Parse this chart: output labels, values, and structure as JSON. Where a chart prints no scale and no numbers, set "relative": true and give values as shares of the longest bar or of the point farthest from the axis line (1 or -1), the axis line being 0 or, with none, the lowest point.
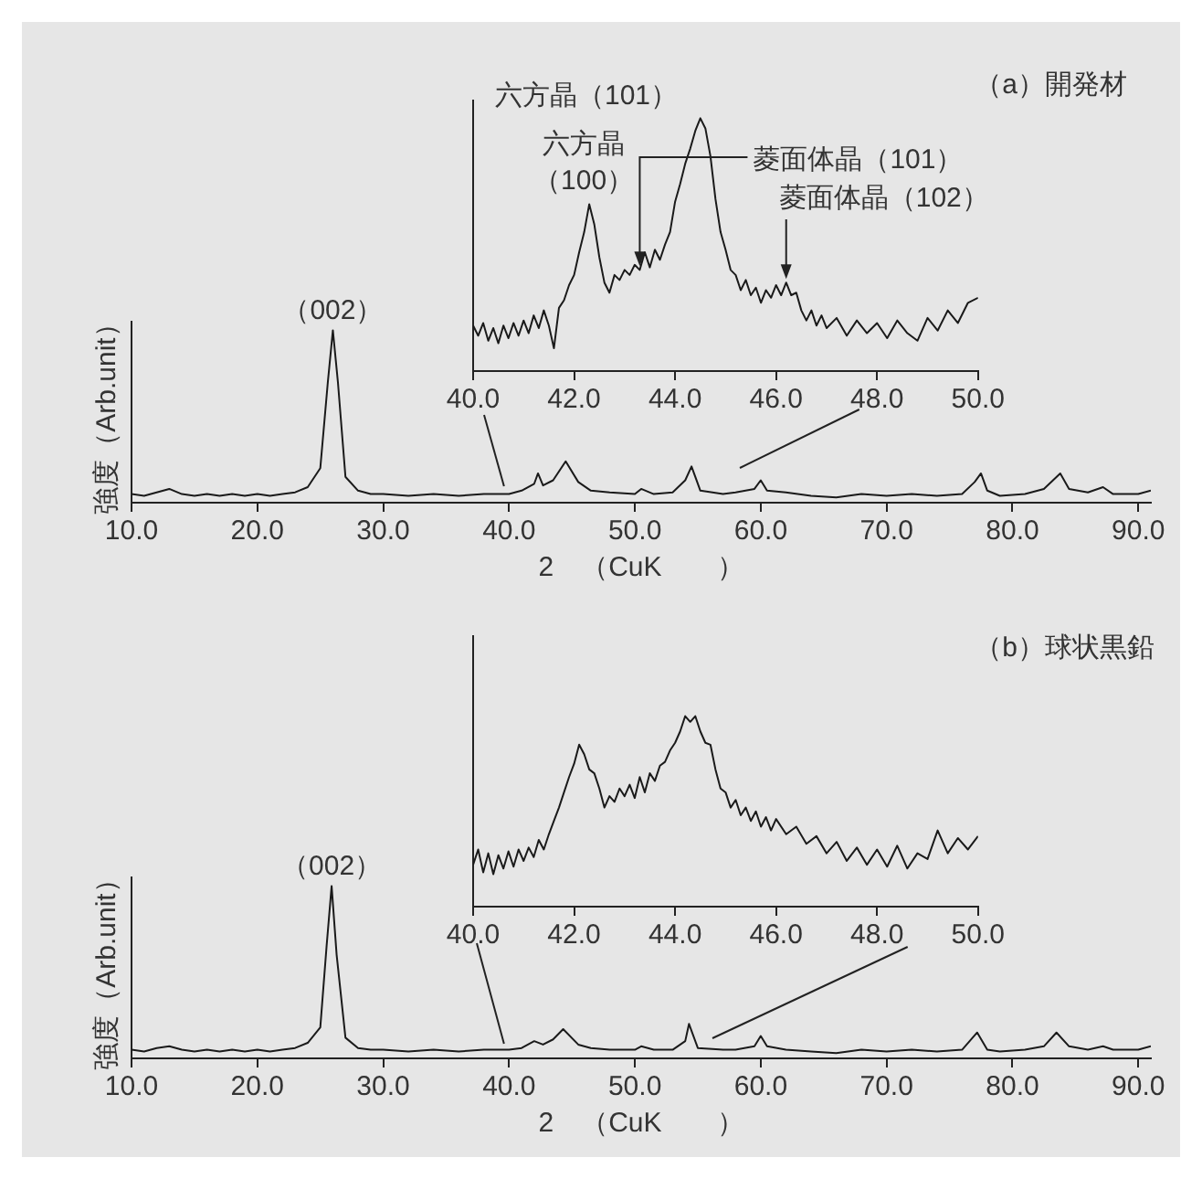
{
  "chart_data": [
    {
      "type": "line",
      "title": "（a）開発材",
      "xlabel": "2　（CuK　　）",
      "ylabel": "強度（Arb.unit）",
      "relative": true,
      "color": "#1a1a1a",
      "xlim": [
        10,
        91
      ],
      "xticks": [
        {
          "value": 10,
          "label": "10.0"
        },
        {
          "value": 20,
          "label": "20.0"
        },
        {
          "value": 30,
          "label": "30.0"
        },
        {
          "value": 40,
          "label": "40.0"
        },
        {
          "value": 50,
          "label": "50.0"
        },
        {
          "value": 60,
          "label": "60.0"
        },
        {
          "value": 70,
          "label": "70.0"
        },
        {
          "value": 80,
          "label": "80.0"
        },
        {
          "value": 90,
          "label": "90.0"
        }
      ],
      "x": [
        10,
        11,
        12,
        13,
        14,
        15,
        16,
        17,
        18,
        19,
        20,
        21,
        22,
        23,
        24,
        25,
        25.6,
        26,
        26.4,
        27,
        28,
        29,
        30,
        32,
        34,
        36,
        38,
        40,
        41,
        42,
        42.3,
        42.7,
        43.5,
        44.5,
        45.5,
        46.5,
        48,
        50,
        50.5,
        51.5,
        53,
        54,
        54.5,
        55.2,
        57,
        58,
        59.5,
        60,
        60.5,
        62,
        64,
        66,
        68,
        70,
        72,
        74,
        76,
        77,
        77.5,
        78,
        79,
        81,
        82.5,
        83.8,
        84.5,
        86,
        87.2,
        88,
        90,
        91
      ],
      "values": [
        0.05,
        0.04,
        0.06,
        0.08,
        0.05,
        0.04,
        0.05,
        0.04,
        0.05,
        0.04,
        0.05,
        0.04,
        0.05,
        0.06,
        0.09,
        0.2,
        0.7,
        1,
        0.7,
        0.15,
        0.07,
        0.05,
        0.05,
        0.04,
        0.05,
        0.04,
        0.05,
        0.05,
        0.07,
        0.11,
        0.17,
        0.1,
        0.13,
        0.24,
        0.12,
        0.07,
        0.06,
        0.05,
        0.08,
        0.05,
        0.06,
        0.13,
        0.21,
        0.07,
        0.05,
        0.06,
        0.08,
        0.13,
        0.07,
        0.06,
        0.04,
        0.03,
        0.05,
        0.04,
        0.05,
        0.04,
        0.05,
        0.12,
        0.17,
        0.07,
        0.04,
        0.05,
        0.08,
        0.17,
        0.08,
        0.06,
        0.09,
        0.05,
        0.05,
        0.07
      ],
      "annotations": [
        {
          "text": "（002）",
          "x": 26,
          "y": 1
        }
      ]
    },
    {
      "type": "line",
      "relative": true,
      "color": "#1a1a1a",
      "xlim": [
        40,
        50
      ],
      "xticks": [
        {
          "value": 40,
          "label": "40.0"
        },
        {
          "value": 42,
          "label": "42.0"
        },
        {
          "value": 44,
          "label": "44.0"
        },
        {
          "value": 46,
          "label": "46.0"
        },
        {
          "value": 48,
          "label": "48.0"
        },
        {
          "value": 50,
          "label": "50.0"
        }
      ],
      "x": [
        40.0,
        40.1,
        40.2,
        40.3,
        40.4,
        40.5,
        40.6,
        40.7,
        40.8,
        40.9,
        41.0,
        41.1,
        41.2,
        41.3,
        41.4,
        41.5,
        41.6,
        41.7,
        41.8,
        41.9,
        42.0,
        42.1,
        42.2,
        42.3,
        42.4,
        42.5,
        42.6,
        42.7,
        42.8,
        42.9,
        43.0,
        43.1,
        43.2,
        43.3,
        43.4,
        43.5,
        43.6,
        43.7,
        43.8,
        43.9,
        44.0,
        44.1,
        44.2,
        44.3,
        44.4,
        44.5,
        44.6,
        44.7,
        44.8,
        44.9,
        45.0,
        45.1,
        45.2,
        45.3,
        45.4,
        45.5,
        45.6,
        45.7,
        45.8,
        45.9,
        46.0,
        46.1,
        46.2,
        46.3,
        46.4,
        46.5,
        46.6,
        46.7,
        46.8,
        46.9,
        47.0,
        47.2,
        47.4,
        47.6,
        47.8,
        48.0,
        48.2,
        48.4,
        48.6,
        48.8,
        49.0,
        49.2,
        49.4,
        49.6,
        49.8,
        50.0
      ],
      "values": [
        0.18,
        0.14,
        0.19,
        0.12,
        0.17,
        0.11,
        0.18,
        0.13,
        0.19,
        0.14,
        0.2,
        0.15,
        0.22,
        0.17,
        0.24,
        0.18,
        0.09,
        0.25,
        0.28,
        0.34,
        0.38,
        0.47,
        0.55,
        0.66,
        0.58,
        0.45,
        0.35,
        0.31,
        0.38,
        0.36,
        0.4,
        0.38,
        0.42,
        0.4,
        0.47,
        0.41,
        0.48,
        0.44,
        0.5,
        0.55,
        0.67,
        0.74,
        0.82,
        0.88,
        0.95,
        1,
        0.96,
        0.85,
        0.68,
        0.55,
        0.48,
        0.4,
        0.38,
        0.32,
        0.36,
        0.3,
        0.33,
        0.27,
        0.32,
        0.29,
        0.34,
        0.3,
        0.35,
        0.3,
        0.31,
        0.24,
        0.2,
        0.24,
        0.18,
        0.22,
        0.17,
        0.21,
        0.14,
        0.2,
        0.15,
        0.19,
        0.13,
        0.2,
        0.15,
        0.12,
        0.21,
        0.16,
        0.24,
        0.19,
        0.27,
        0.29
      ],
      "annotations": [
        "六方晶（101）",
        {
          "text": "六方晶（100）",
          "x": 42.3,
          "y": 0.66
        },
        {
          "text": "菱面体晶（101）",
          "x": 43.3,
          "y": 0.4
        },
        {
          "text": "菱面体晶（102）",
          "x": 46.2,
          "y": 0.35
        }
      ]
    },
    {
      "type": "line",
      "title": "（b）球状黒鉛",
      "xlabel": "2　（CuK　　）",
      "ylabel": "強度（Arb.unit）",
      "relative": true,
      "color": "#1a1a1a",
      "xlim": [
        10,
        91
      ],
      "xticks": [
        {
          "value": 10,
          "label": "10.0"
        },
        {
          "value": 20,
          "label": "20.0"
        },
        {
          "value": 30,
          "label": "30.0"
        },
        {
          "value": 40,
          "label": "40.0"
        },
        {
          "value": 50,
          "label": "50.0"
        },
        {
          "value": 60,
          "label": "60.0"
        },
        {
          "value": 70,
          "label": "70.0"
        },
        {
          "value": 80,
          "label": "80.0"
        },
        {
          "value": 90,
          "label": "90.0"
        }
      ],
      "x": [
        10,
        11,
        12,
        13,
        14,
        15,
        16,
        17,
        18,
        19,
        20,
        21,
        22,
        23,
        24,
        25,
        25.5,
        25.9,
        26.3,
        27,
        28,
        29,
        30,
        32,
        34,
        36,
        38,
        40,
        41,
        42,
        42.7,
        43.5,
        44.3,
        45.5,
        46.5,
        48,
        50,
        50.5,
        51.5,
        53,
        54,
        54.3,
        55,
        57,
        58,
        59.5,
        60,
        60.5,
        62,
        64,
        66,
        68,
        70,
        72,
        74,
        76,
        77.2,
        78,
        79,
        81,
        82.5,
        83.5,
        84.5,
        86,
        87.2,
        88,
        90,
        91
      ],
      "values": [
        0.05,
        0.04,
        0.06,
        0.07,
        0.05,
        0.04,
        0.05,
        0.04,
        0.05,
        0.04,
        0.05,
        0.04,
        0.05,
        0.06,
        0.09,
        0.18,
        0.65,
        1,
        0.6,
        0.12,
        0.06,
        0.05,
        0.05,
        0.04,
        0.05,
        0.04,
        0.05,
        0.05,
        0.06,
        0.1,
        0.08,
        0.11,
        0.17,
        0.08,
        0.06,
        0.05,
        0.05,
        0.07,
        0.05,
        0.05,
        0.1,
        0.2,
        0.06,
        0.05,
        0.05,
        0.07,
        0.13,
        0.07,
        0.05,
        0.04,
        0.03,
        0.05,
        0.04,
        0.05,
        0.04,
        0.05,
        0.15,
        0.05,
        0.04,
        0.05,
        0.07,
        0.15,
        0.07,
        0.05,
        0.07,
        0.05,
        0.05,
        0.07
      ],
      "annotations": [
        {
          "text": "（002）",
          "x": 25.9,
          "y": 1
        }
      ]
    },
    {
      "type": "line",
      "relative": true,
      "color": "#1a1a1a",
      "xlim": [
        40,
        50
      ],
      "xticks": [
        {
          "value": 40,
          "label": "40.0"
        },
        {
          "value": 42,
          "label": "42.0"
        },
        {
          "value": 44,
          "label": "44.0"
        },
        {
          "value": 46,
          "label": "46.0"
        },
        {
          "value": 48,
          "label": "48.0"
        },
        {
          "value": 50,
          "label": "50.0"
        }
      ],
      "x": [
        40.0,
        40.1,
        40.2,
        40.3,
        40.4,
        40.5,
        40.6,
        40.7,
        40.8,
        40.9,
        41.0,
        41.1,
        41.2,
        41.3,
        41.4,
        41.5,
        41.6,
        41.7,
        41.8,
        41.9,
        42.0,
        42.1,
        42.2,
        42.3,
        42.4,
        42.5,
        42.6,
        42.7,
        42.8,
        42.9,
        43.0,
        43.1,
        43.2,
        43.3,
        43.4,
        43.5,
        43.6,
        43.7,
        43.8,
        43.9,
        44.0,
        44.1,
        44.2,
        44.3,
        44.4,
        44.5,
        44.6,
        44.7,
        44.8,
        44.9,
        45.0,
        45.1,
        45.2,
        45.3,
        45.4,
        45.5,
        45.6,
        45.7,
        45.8,
        45.9,
        46.0,
        46.2,
        46.4,
        46.6,
        46.8,
        47.0,
        47.2,
        47.4,
        47.6,
        47.8,
        48.0,
        48.2,
        48.4,
        48.6,
        48.8,
        49.0,
        49.2,
        49.4,
        49.6,
        49.8,
        50.0
      ],
      "values": [
        0.22,
        0.3,
        0.18,
        0.28,
        0.17,
        0.27,
        0.2,
        0.29,
        0.21,
        0.3,
        0.24,
        0.31,
        0.26,
        0.35,
        0.3,
        0.38,
        0.45,
        0.52,
        0.6,
        0.68,
        0.75,
        0.85,
        0.8,
        0.72,
        0.7,
        0.62,
        0.52,
        0.58,
        0.55,
        0.62,
        0.58,
        0.64,
        0.57,
        0.68,
        0.6,
        0.7,
        0.66,
        0.74,
        0.76,
        0.82,
        0.86,
        0.92,
        1,
        0.97,
        1,
        0.92,
        0.86,
        0.85,
        0.72,
        0.62,
        0.6,
        0.52,
        0.56,
        0.48,
        0.52,
        0.45,
        0.5,
        0.42,
        0.47,
        0.4,
        0.46,
        0.38,
        0.42,
        0.33,
        0.37,
        0.28,
        0.34,
        0.24,
        0.31,
        0.22,
        0.3,
        0.21,
        0.32,
        0.2,
        0.28,
        0.25,
        0.4,
        0.28,
        0.36,
        0.3,
        0.37
      ]
    }
  ]
}
